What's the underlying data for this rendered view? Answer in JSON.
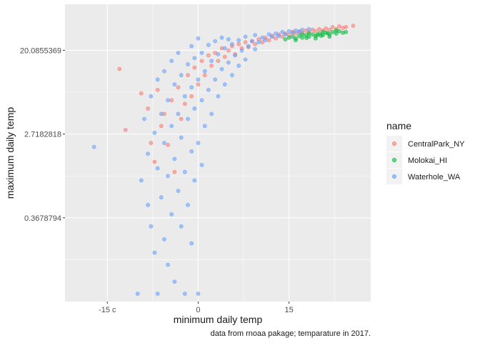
{
  "chart_data": {
    "type": "scatter",
    "title": "",
    "xlabel": "minimum daily temp",
    "ylabel": "maximum daily temp",
    "caption": "data from rnoaa pakage; temparature in 2017.",
    "x_ticks": [
      {
        "value": -15,
        "label": "-15 c"
      },
      {
        "value": 0,
        "label": "0"
      },
      {
        "value": 15,
        "label": "15"
      }
    ],
    "y_scale": "log",
    "y_ticks": [
      {
        "value": 0.3678794,
        "label": "0.3678794"
      },
      {
        "value": 2.7182818,
        "label": "2.7182818"
      },
      {
        "value": 20.0855369,
        "label": "20.0855369"
      }
    ],
    "xlim": [
      -22,
      28.5
    ],
    "ylim": [
      0.0498,
      60.3
    ],
    "grid": true,
    "legend_position": "right",
    "legend": {
      "title": "name",
      "entries": [
        {
          "name": "CentralPark_NY",
          "color": "#F8766D"
        },
        {
          "name": "Molokai_HI",
          "color": "#00BA38"
        },
        {
          "name": "Waterhole_WA",
          "color": "#619CFF"
        }
      ]
    },
    "colors": {
      "panel": "#EBEBEB",
      "grid_major": "#FFFFFF"
    },
    "series": [
      {
        "name": "CentralPark_NY",
        "color": "#F8766D",
        "points": [
          [
            -13,
            12.9
          ],
          [
            -12,
            3.0
          ],
          [
            -9.4,
            7.2
          ],
          [
            -8.3,
            5.0
          ],
          [
            -7.8,
            2.2
          ],
          [
            -7.2,
            1.4
          ],
          [
            -6.7,
            7.8
          ],
          [
            -6.1,
            3.3
          ],
          [
            -5.6,
            4.4
          ],
          [
            -5.0,
            2.1
          ],
          [
            -4.4,
            6.1
          ],
          [
            -3.9,
            1.1
          ],
          [
            -3.3,
            8.3
          ],
          [
            -2.8,
            3.9
          ],
          [
            -2.2,
            5.6
          ],
          [
            -1.7,
            11.1
          ],
          [
            -1.1,
            6.7
          ],
          [
            -0.6,
            13.3
          ],
          [
            0,
            8.9
          ],
          [
            0.6,
            15.6
          ],
          [
            1.1,
            11.1
          ],
          [
            1.7,
            17.8
          ],
          [
            2.2,
            13.9
          ],
          [
            2.8,
            18.9
          ],
          [
            3.3,
            15.6
          ],
          [
            3.9,
            21.1
          ],
          [
            4.4,
            17.2
          ],
          [
            5.0,
            20.0
          ],
          [
            5.6,
            22.2
          ],
          [
            6.1,
            18.3
          ],
          [
            6.7,
            23.3
          ],
          [
            7.2,
            21.1
          ],
          [
            7.8,
            24.4
          ],
          [
            8.3,
            21.7
          ],
          [
            8.9,
            25.0
          ],
          [
            9.4,
            23.3
          ],
          [
            10.0,
            26.1
          ],
          [
            10.6,
            24.4
          ],
          [
            11.1,
            27.2
          ],
          [
            11.7,
            25.6
          ],
          [
            12.2,
            28.3
          ],
          [
            12.8,
            26.7
          ],
          [
            13.3,
            29.4
          ],
          [
            13.9,
            27.8
          ],
          [
            14.4,
            30.0
          ],
          [
            15.0,
            28.9
          ],
          [
            15.6,
            31.1
          ],
          [
            16.1,
            30.0
          ],
          [
            16.7,
            31.7
          ],
          [
            17.2,
            30.6
          ],
          [
            17.8,
            32.2
          ],
          [
            18.3,
            31.1
          ],
          [
            18.9,
            32.8
          ],
          [
            19.4,
            31.7
          ],
          [
            20.0,
            33.3
          ],
          [
            20.6,
            32.2
          ],
          [
            21.1,
            33.9
          ],
          [
            21.7,
            32.8
          ],
          [
            22.2,
            35.0
          ],
          [
            22.8,
            33.3
          ],
          [
            23.3,
            35.6
          ],
          [
            23.9,
            34.4
          ],
          [
            24.4,
            35.0
          ],
          [
            25.6,
            36.1
          ]
        ]
      },
      {
        "name": "Molokai_HI",
        "color": "#00BA38",
        "points": [
          [
            14.4,
            26.1
          ],
          [
            15.0,
            27.2
          ],
          [
            15.6,
            27.8
          ],
          [
            16.1,
            26.7
          ],
          [
            16.7,
            28.3
          ],
          [
            17.2,
            27.2
          ],
          [
            17.8,
            28.9
          ],
          [
            18.3,
            27.8
          ],
          [
            18.9,
            29.4
          ],
          [
            19.4,
            28.3
          ],
          [
            20.0,
            30.0
          ],
          [
            20.6,
            28.9
          ],
          [
            21.1,
            30.6
          ],
          [
            21.7,
            29.4
          ],
          [
            22.2,
            31.1
          ],
          [
            22.8,
            30.0
          ],
          [
            23.3,
            31.7
          ],
          [
            23.9,
            30.6
          ],
          [
            24.4,
            31.1
          ],
          [
            16.1,
            25.6
          ],
          [
            17.2,
            29.4
          ],
          [
            18.3,
            30.0
          ],
          [
            19.4,
            26.7
          ],
          [
            20.6,
            31.1
          ],
          [
            21.7,
            27.8
          ],
          [
            22.8,
            32.2
          ],
          [
            19.7,
            29.0
          ],
          [
            21.4,
            30.2
          ],
          [
            17.9,
            27.0
          ],
          [
            20.3,
            28.5
          ]
        ]
      },
      {
        "name": "Waterhole_WA",
        "color": "#619CFF",
        "points": [
          [
            -17.2,
            2.0
          ],
          [
            -10.0,
            0.06
          ],
          [
            -9.4,
            0.9
          ],
          [
            -8.9,
            3.9
          ],
          [
            -8.3,
            0.5
          ],
          [
            -8.3,
            1.7
          ],
          [
            -7.8,
            0.3
          ],
          [
            -7.8,
            6.7
          ],
          [
            -7.2,
            0.16
          ],
          [
            -7.2,
            2.8
          ],
          [
            -6.7,
            0.06
          ],
          [
            -6.7,
            1.2
          ],
          [
            -6.7,
            10.0
          ],
          [
            -6.1,
            0.6
          ],
          [
            -6.1,
            4.4
          ],
          [
            -5.6,
            0.22
          ],
          [
            -5.6,
            2.2
          ],
          [
            -5.6,
            12.2
          ],
          [
            -5.0,
            0.12
          ],
          [
            -5.0,
            1.0
          ],
          [
            -5.0,
            6.1
          ],
          [
            -4.4,
            0.4
          ],
          [
            -4.4,
            3.3
          ],
          [
            -4.4,
            15.6
          ],
          [
            -3.9,
            0.08
          ],
          [
            -3.9,
            1.5
          ],
          [
            -3.9,
            8.9
          ],
          [
            -3.3,
            0.7
          ],
          [
            -3.3,
            4.4
          ],
          [
            -3.3,
            18.9
          ],
          [
            -2.8,
            0.3
          ],
          [
            -2.8,
            2.5
          ],
          [
            -2.8,
            11.1
          ],
          [
            -2.2,
            0.06
          ],
          [
            -2.2,
            1.1
          ],
          [
            -2.2,
            6.7
          ],
          [
            -1.7,
            0.5
          ],
          [
            -1.7,
            3.9
          ],
          [
            -1.7,
            14.4
          ],
          [
            -1.1,
            0.2
          ],
          [
            -1.1,
            1.8
          ],
          [
            -1.1,
            8.3
          ],
          [
            -1.1,
            22.2
          ],
          [
            -0.6,
            0.9
          ],
          [
            -0.6,
            5.0
          ],
          [
            -0.6,
            16.7
          ],
          [
            0,
            0.06
          ],
          [
            0,
            2.2
          ],
          [
            0,
            10.0
          ],
          [
            0,
            26.7
          ],
          [
            0.6,
            1.3
          ],
          [
            0.6,
            6.1
          ],
          [
            0.6,
            18.9
          ],
          [
            1.1,
            3.3
          ],
          [
            1.1,
            12.2
          ],
          [
            1.7,
            7.8
          ],
          [
            1.7,
            22.8
          ],
          [
            2.2,
            4.4
          ],
          [
            2.2,
            15.6
          ],
          [
            2.8,
            10.0
          ],
          [
            2.8,
            25.0
          ],
          [
            3.3,
            6.7
          ],
          [
            3.3,
            18.3
          ],
          [
            3.9,
            12.8
          ],
          [
            3.9,
            27.2
          ],
          [
            4.4,
            8.9
          ],
          [
            4.4,
            21.1
          ],
          [
            5.0,
            15.0
          ],
          [
            5.0,
            26.1
          ],
          [
            5.6,
            11.1
          ],
          [
            5.6,
            23.3
          ],
          [
            6.1,
            17.8
          ],
          [
            6.7,
            13.9
          ],
          [
            6.7,
            25.6
          ],
          [
            7.2,
            20.0
          ],
          [
            7.8,
            16.1
          ],
          [
            7.8,
            27.8
          ],
          [
            8.3,
            22.2
          ],
          [
            8.9,
            25.0
          ],
          [
            9.4,
            20.6
          ],
          [
            9.4,
            28.9
          ],
          [
            10.0,
            24.4
          ],
          [
            10.6,
            27.2
          ],
          [
            11.1,
            25.6
          ],
          [
            11.7,
            29.4
          ],
          [
            12.2,
            27.8
          ],
          [
            12.8,
            30.0
          ],
          [
            13.3,
            28.3
          ],
          [
            13.9,
            31.1
          ],
          [
            14.4,
            29.4
          ],
          [
            15.0,
            31.7
          ],
          [
            15.6,
            30.6
          ],
          [
            16.1,
            32.2
          ],
          [
            16.7,
            31.1
          ],
          [
            17.2,
            32.8
          ],
          [
            18.3,
            33.3
          ]
        ]
      }
    ]
  }
}
